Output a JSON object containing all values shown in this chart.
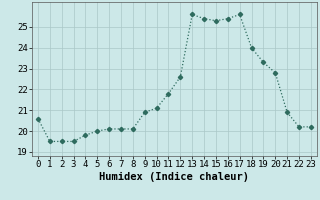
{
  "x": [
    0,
    1,
    2,
    3,
    4,
    5,
    6,
    7,
    8,
    9,
    10,
    11,
    12,
    13,
    14,
    15,
    16,
    17,
    18,
    19,
    20,
    21,
    22,
    23
  ],
  "y": [
    20.6,
    19.5,
    19.5,
    19.5,
    19.8,
    20.0,
    20.1,
    20.1,
    20.1,
    20.9,
    21.1,
    21.8,
    22.6,
    25.6,
    25.4,
    25.3,
    25.4,
    25.6,
    24.0,
    23.3,
    22.8,
    20.9,
    20.2,
    20.2
  ],
  "line_color": "#2e6b5e",
  "marker": "D",
  "marker_size": 2.2,
  "line_width": 0.9,
  "xlabel": "Humidex (Indice chaleur)",
  "xlim": [
    -0.5,
    23.5
  ],
  "ylim": [
    18.8,
    26.2
  ],
  "yticks": [
    19,
    20,
    21,
    22,
    23,
    24,
    25
  ],
  "xticks": [
    0,
    1,
    2,
    3,
    4,
    5,
    6,
    7,
    8,
    9,
    10,
    11,
    12,
    13,
    14,
    15,
    16,
    17,
    18,
    19,
    20,
    21,
    22,
    23
  ],
  "background_color": "#cce8e8",
  "grid_color": "#aac8c8",
  "tick_label_fontsize": 6.5,
  "xlabel_fontsize": 7.5
}
